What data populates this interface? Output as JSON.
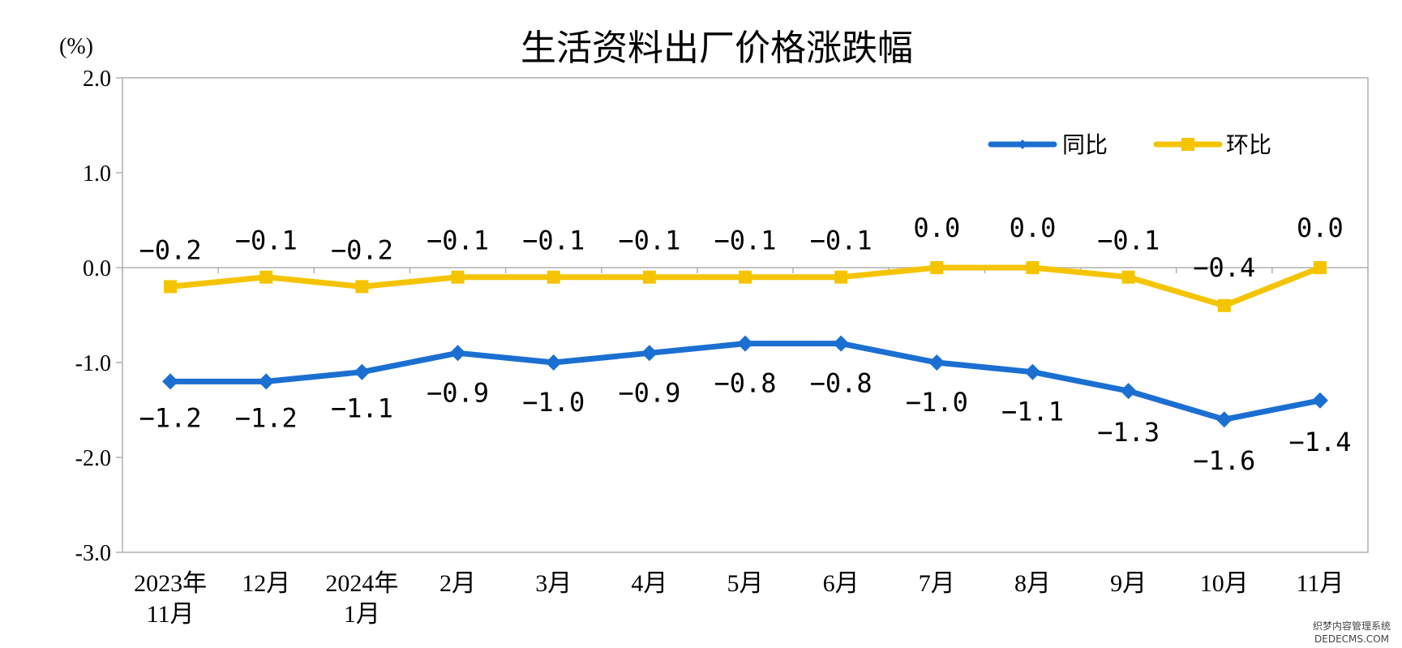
{
  "chart_data": {
    "type": "line",
    "title": "生活资料出厂价格涨跌幅",
    "unit": "(%)",
    "categories": [
      [
        "2023年",
        "11月"
      ],
      [
        "12月"
      ],
      [
        "2024年",
        "1月"
      ],
      [
        "2月"
      ],
      [
        "3月"
      ],
      [
        "4月"
      ],
      [
        "5月"
      ],
      [
        "6月"
      ],
      [
        "7月"
      ],
      [
        "8月"
      ],
      [
        "9月"
      ],
      [
        "10月"
      ],
      [
        "11月"
      ]
    ],
    "ylim": [
      -3.0,
      2.0
    ],
    "yticks": [
      2.0,
      1.0,
      0.0,
      -1.0,
      -2.0,
      -3.0
    ],
    "ytick_labels": [
      "2.0",
      "1.0",
      "0.0",
      "-1.0",
      "-2.0",
      "-3.0"
    ],
    "grid": false,
    "legend_position": "top-right",
    "series": [
      {
        "name": "同比",
        "color": "#1b6fd1",
        "marker": "diamond",
        "values": [
          -1.2,
          -1.2,
          -1.1,
          -0.9,
          -1.0,
          -0.9,
          -0.8,
          -0.8,
          -1.0,
          -1.1,
          -1.3,
          -1.6,
          -1.4
        ],
        "labels": [
          "−1.2",
          "−1.2",
          "−1.1",
          "−0.9",
          "−1.0",
          "−0.9",
          "−0.8",
          "−0.8",
          "−1.0",
          "−1.1",
          "−1.3",
          "−1.6",
          "−1.4"
        ]
      },
      {
        "name": "环比",
        "color": "#f5c400",
        "marker": "square",
        "values": [
          -0.2,
          -0.1,
          -0.2,
          -0.1,
          -0.1,
          -0.1,
          -0.1,
          -0.1,
          0.0,
          0.0,
          -0.1,
          -0.4,
          0.0
        ],
        "labels": [
          "−0.2",
          "−0.1",
          "−0.2",
          "−0.1",
          "−0.1",
          "−0.1",
          "−0.1",
          "−0.1",
          "0.0",
          "0.0",
          "−0.1",
          "−0.4",
          "0.0"
        ]
      }
    ]
  },
  "watermark": {
    "line1": "织梦内容管理系统",
    "line2": "DEDECMS.COM"
  }
}
